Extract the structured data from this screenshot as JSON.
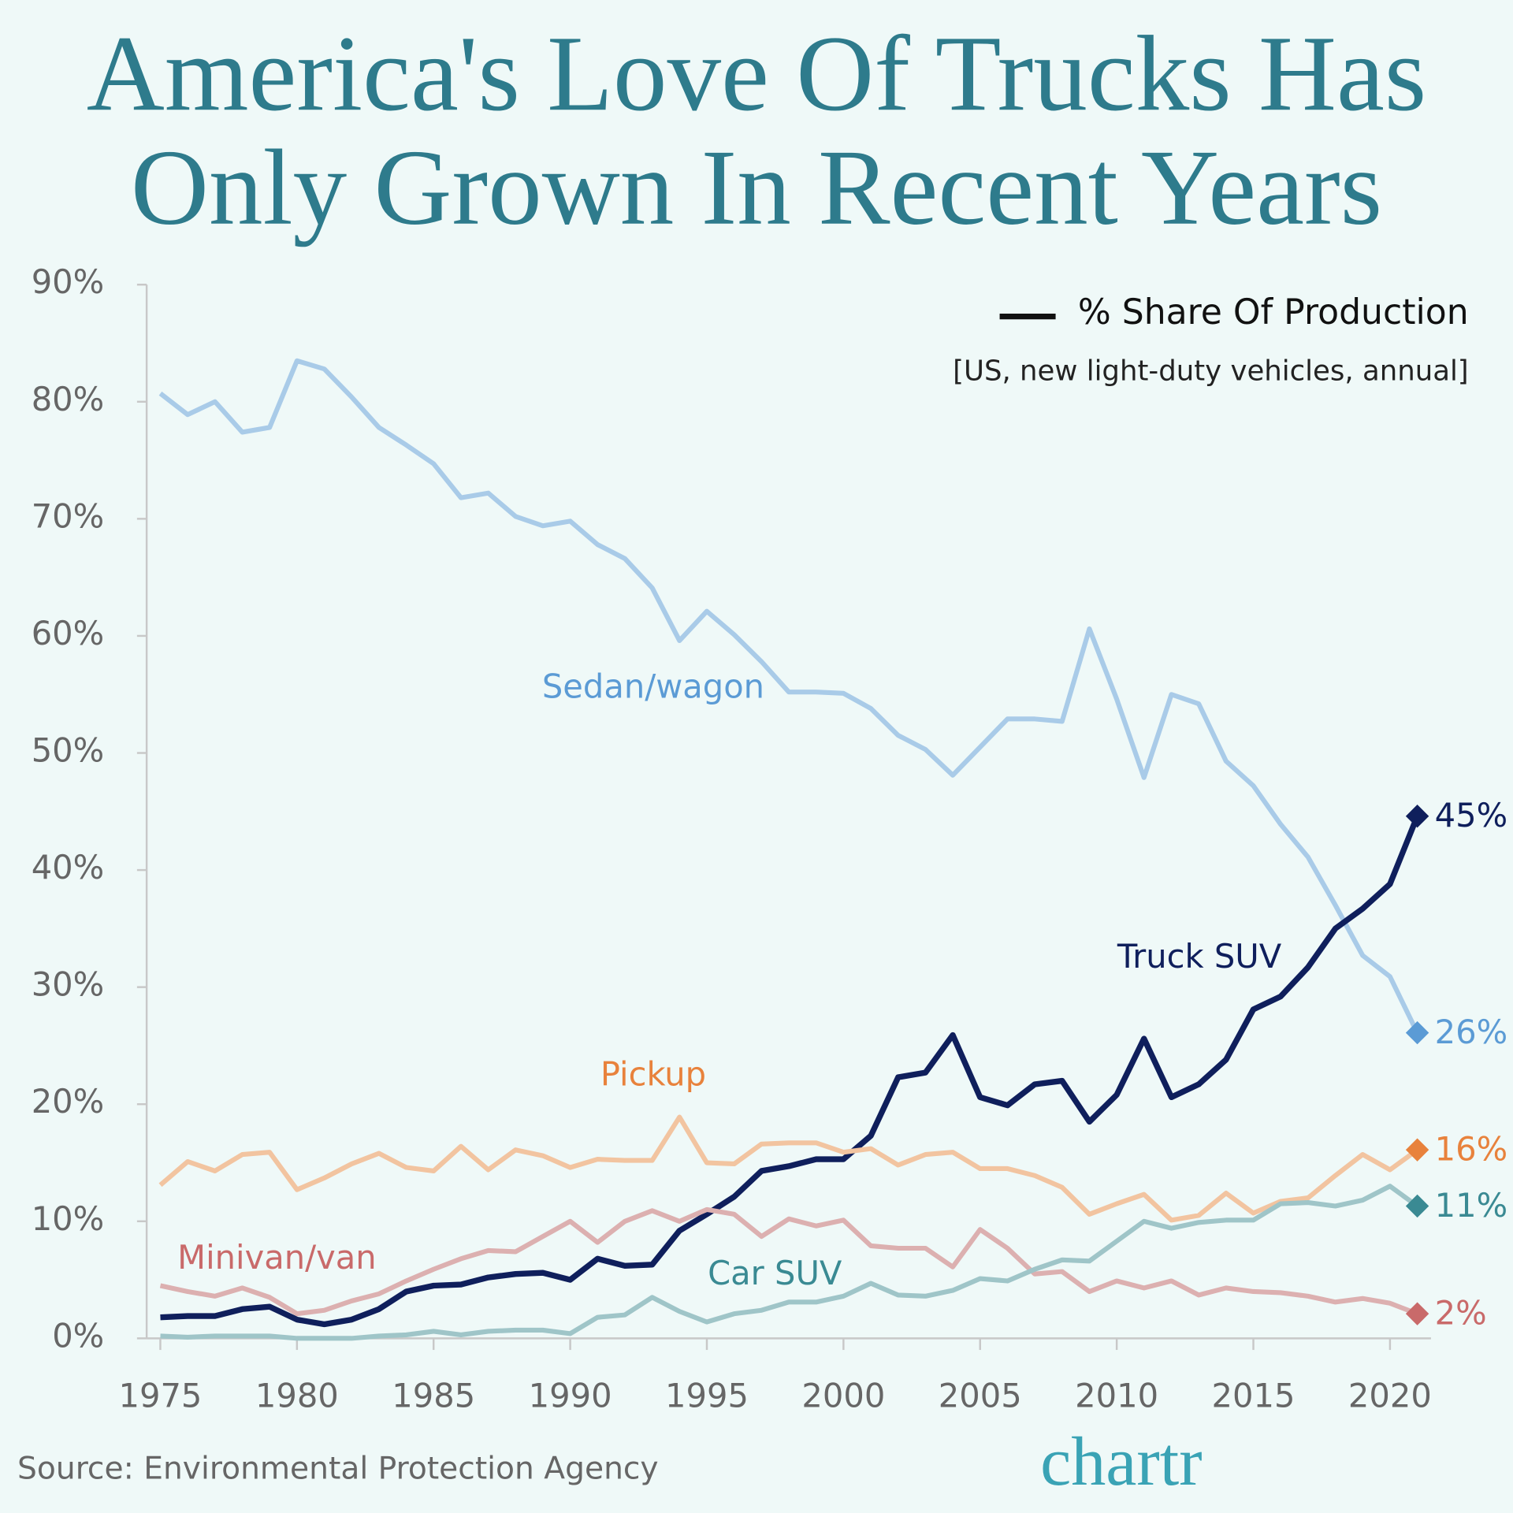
{
  "chart_data": {
    "type": "line",
    "title": [
      "America's Love Of Trucks Has",
      "Only Grown In Recent Years"
    ],
    "legend_label": "% Share Of Production",
    "subtitle": "[US, new light-duty vehicles, annual]",
    "source": "Source: Environmental Protection Agency",
    "logo": "chartr",
    "x": [
      1975,
      1976,
      1977,
      1978,
      1979,
      1980,
      1981,
      1982,
      1983,
      1984,
      1985,
      1986,
      1987,
      1988,
      1989,
      1990,
      1991,
      1992,
      1993,
      1994,
      1995,
      1996,
      1997,
      1998,
      1999,
      2000,
      2001,
      2002,
      2003,
      2004,
      2005,
      2006,
      2007,
      2008,
      2009,
      2010,
      2011,
      2012,
      2013,
      2014,
      2015,
      2016,
      2017,
      2018,
      2019,
      2020,
      2021
    ],
    "xlim": [
      1974.5,
      2021.5
    ],
    "xticks": [
      1975,
      1980,
      1985,
      1990,
      1995,
      2000,
      2005,
      2010,
      2015,
      2020
    ],
    "ylim": [
      0,
      90
    ],
    "yticks": [
      {
        "value": 0,
        "label": "0%"
      },
      {
        "value": 10,
        "label": "10%"
      },
      {
        "value": 20,
        "label": "20%"
      },
      {
        "value": 30,
        "label": "30%"
      },
      {
        "value": 40,
        "label": "40%"
      },
      {
        "value": 50,
        "label": "50%"
      },
      {
        "value": 60,
        "label": "60%"
      },
      {
        "value": 70,
        "label": "70%"
      },
      {
        "value": 80,
        "label": "80%"
      },
      {
        "value": 90,
        "label": "90%"
      }
    ],
    "series": [
      {
        "name": "Sedan/wagon",
        "color": "#a9cbe8",
        "label_color": "#5b9bd5",
        "values": [
          80.7,
          78.9,
          80.0,
          77.4,
          77.8,
          83.5,
          82.8,
          80.4,
          77.8,
          76.3,
          74.7,
          71.8,
          72.2,
          70.2,
          69.4,
          69.8,
          67.8,
          66.6,
          64.1,
          59.6,
          62.1,
          60.1,
          57.8,
          55.2,
          55.2,
          55.1,
          53.8,
          51.5,
          50.3,
          48.1,
          50.5,
          52.9,
          52.9,
          52.7,
          60.6,
          54.6,
          47.9,
          55.0,
          54.2,
          49.3,
          47.2,
          43.9,
          41.1,
          37.0,
          32.7,
          30.9,
          26.1
        ],
        "value_labels": [
          null,
          null,
          null,
          null,
          null,
          null,
          null,
          null,
          null,
          null,
          null,
          null,
          null,
          null,
          null,
          null,
          null,
          null,
          null,
          null,
          null,
          null,
          null,
          null,
          null,
          null,
          null,
          null,
          null,
          null,
          null,
          null,
          null,
          null,
          null,
          null,
          null,
          null,
          null,
          null,
          null,
          null,
          null,
          null,
          null,
          null,
          "26%"
        ]
      },
      {
        "name": "Truck SUV",
        "color": "#0f1f5c",
        "label_color": "#0f1f5c",
        "values": [
          1.8,
          1.9,
          1.9,
          2.5,
          2.7,
          1.6,
          1.2,
          1.6,
          2.5,
          4.0,
          4.5,
          4.6,
          5.2,
          5.5,
          5.6,
          5.0,
          6.8,
          6.2,
          6.3,
          9.2,
          10.6,
          12.1,
          14.3,
          14.7,
          15.3,
          15.3,
          17.3,
          22.3,
          22.7,
          25.9,
          20.6,
          19.9,
          21.7,
          22.0,
          18.5,
          20.8,
          25.6,
          20.6,
          21.7,
          23.8,
          28.1,
          29.2,
          31.7,
          35.0,
          36.7,
          38.8,
          44.6
        ],
        "value_labels": [
          null,
          null,
          null,
          null,
          null,
          null,
          null,
          null,
          null,
          null,
          null,
          null,
          null,
          null,
          null,
          null,
          null,
          null,
          null,
          null,
          null,
          null,
          null,
          null,
          null,
          null,
          null,
          null,
          null,
          null,
          null,
          null,
          null,
          null,
          null,
          null,
          null,
          null,
          null,
          null,
          null,
          null,
          null,
          null,
          null,
          null,
          "45%"
        ]
      },
      {
        "name": "Pickup",
        "color": "#f2c4a0",
        "label_color": "#e8823c",
        "values": [
          13.1,
          15.1,
          14.3,
          15.7,
          15.9,
          12.7,
          13.7,
          14.9,
          15.8,
          14.6,
          14.3,
          16.4,
          14.4,
          16.1,
          15.6,
          14.6,
          15.3,
          15.2,
          15.2,
          18.9,
          15.0,
          14.9,
          16.6,
          16.7,
          16.7,
          15.9,
          16.2,
          14.8,
          15.7,
          15.9,
          14.5,
          14.5,
          13.9,
          12.9,
          10.6,
          11.5,
          12.3,
          10.1,
          10.5,
          12.4,
          10.7,
          11.7,
          12.0,
          13.9,
          15.7,
          14.4,
          16.1
        ],
        "value_labels": [
          null,
          null,
          null,
          null,
          null,
          null,
          null,
          null,
          null,
          null,
          null,
          null,
          null,
          null,
          null,
          null,
          null,
          null,
          null,
          null,
          null,
          null,
          null,
          null,
          null,
          null,
          null,
          null,
          null,
          null,
          null,
          null,
          null,
          null,
          null,
          null,
          null,
          null,
          null,
          null,
          null,
          null,
          null,
          null,
          null,
          null,
          "16%"
        ]
      },
      {
        "name": "Minivan/van",
        "color": "#dcb0b0",
        "label_color": "#c96a6a",
        "values": [
          4.5,
          4.0,
          3.6,
          4.3,
          3.5,
          2.1,
          2.4,
          3.2,
          3.8,
          4.9,
          5.9,
          6.8,
          7.5,
          7.4,
          8.7,
          10.0,
          8.2,
          10.0,
          10.9,
          10.0,
          11.0,
          10.6,
          8.7,
          10.2,
          9.6,
          10.1,
          7.9,
          7.7,
          7.7,
          6.1,
          9.3,
          7.7,
          5.5,
          5.7,
          4.0,
          4.9,
          4.3,
          4.9,
          3.7,
          4.3,
          4.0,
          3.9,
          3.6,
          3.1,
          3.4,
          3.0,
          2.1
        ],
        "value_labels": [
          null,
          null,
          null,
          null,
          null,
          null,
          null,
          null,
          null,
          null,
          null,
          null,
          null,
          null,
          null,
          null,
          null,
          null,
          null,
          null,
          null,
          null,
          null,
          null,
          null,
          null,
          null,
          null,
          null,
          null,
          null,
          null,
          null,
          null,
          null,
          null,
          null,
          null,
          null,
          null,
          null,
          null,
          null,
          null,
          null,
          null,
          "2%"
        ]
      },
      {
        "name": "Car SUV",
        "color": "#9fc5c8",
        "label_color": "#3a8a93",
        "values": [
          0.2,
          0.1,
          0.2,
          0.2,
          0.2,
          0.0,
          0.0,
          0.0,
          0.2,
          0.3,
          0.6,
          0.3,
          0.6,
          0.7,
          0.7,
          0.4,
          1.8,
          2.0,
          3.5,
          2.3,
          1.4,
          2.1,
          2.4,
          3.1,
          3.1,
          3.6,
          4.7,
          3.7,
          3.6,
          4.1,
          5.1,
          4.9,
          5.9,
          6.7,
          6.6,
          8.3,
          10.0,
          9.4,
          9.9,
          10.1,
          10.1,
          11.5,
          11.6,
          11.3,
          11.8,
          13.0,
          11.3
        ],
        "value_labels": [
          null,
          null,
          null,
          null,
          null,
          null,
          null,
          null,
          null,
          null,
          null,
          null,
          null,
          null,
          null,
          null,
          null,
          null,
          null,
          null,
          null,
          null,
          null,
          null,
          null,
          null,
          null,
          null,
          null,
          null,
          null,
          null,
          null,
          null,
          null,
          null,
          null,
          null,
          null,
          null,
          null,
          null,
          null,
          null,
          null,
          null,
          "11%"
        ]
      }
    ]
  }
}
